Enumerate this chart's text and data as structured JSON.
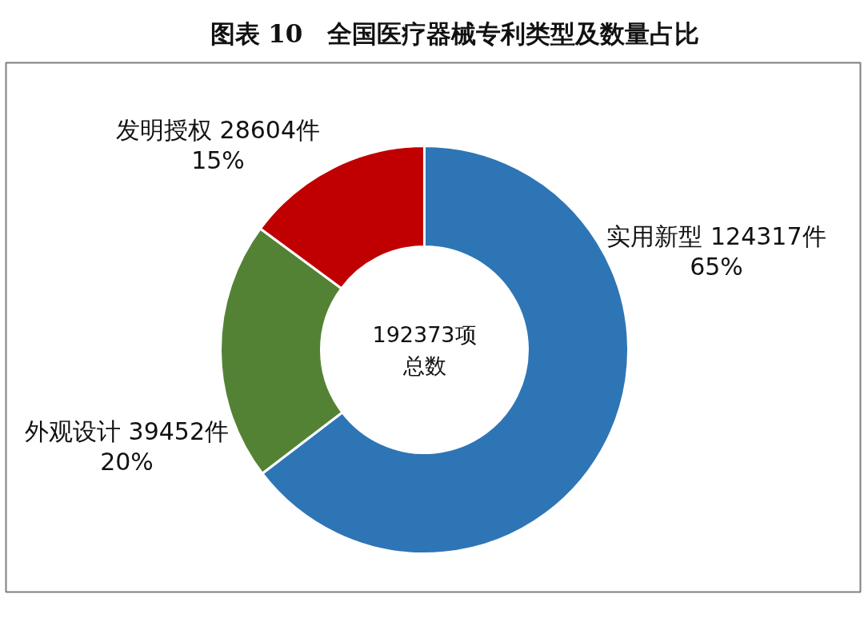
{
  "chart_data": {
    "type": "donut",
    "title": "图表 10　全国医疗器械专利类型及数量占比",
    "categories": [
      "实用新型",
      "外观设计",
      "发明授权"
    ],
    "values": [
      124317,
      39452,
      28604
    ],
    "colors": [
      "#2e75b6",
      "#548235",
      "#c00000"
    ],
    "value_labels": [
      "124317件\n65%",
      "39452件\n20%",
      "28604件\n15%"
    ],
    "annotations": [
      "192373项",
      "总数"
    ]
  }
}
